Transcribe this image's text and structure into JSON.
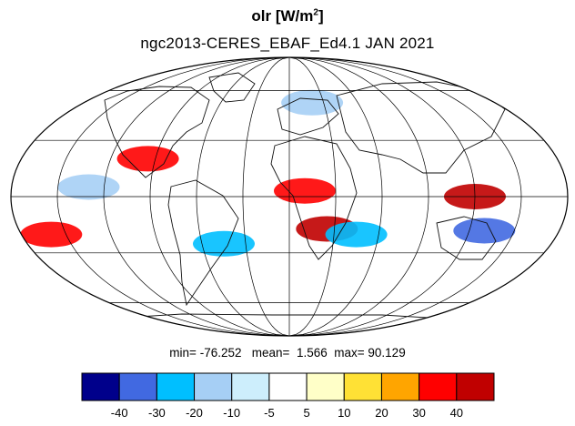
{
  "title": {
    "variable": "olr",
    "units_prefix": " [W/m",
    "units_exp": "2",
    "units_suffix": "]"
  },
  "subtitle": "ngc2013-CERES_EBAF_Ed4.1  JAN 2021",
  "stats": {
    "min_label": "min=",
    "min": "-76.252",
    "mean_label": "mean=",
    "mean": "1.566",
    "max_label": "max=",
    "max": "90.129"
  },
  "colorbar": {
    "levels": [
      "-40",
      "-30",
      "-20",
      "-10",
      "-5",
      "5",
      "10",
      "20",
      "30",
      "40"
    ],
    "colors": [
      "#00008b",
      "#4169e1",
      "#00bfff",
      "#a6cff5",
      "#cdeefc",
      "#ffffff",
      "#ffffc8",
      "#ffe135",
      "#ffa500",
      "#ff0000",
      "#c00000"
    ]
  },
  "map": {
    "projection": "mollweide",
    "background": "#ffffff",
    "coastline_color": "#000000",
    "grid": true,
    "anomalies": [
      {
        "region": "equatorial Africa / Atlantic",
        "lon": 10,
        "lat": 3,
        "value": 35
      },
      {
        "region": "Indonesia / maritime continent",
        "lon": 120,
        "lat": 0,
        "value": 40
      },
      {
        "region": "southern Africa",
        "lon": 25,
        "lat": -17,
        "value": 40
      },
      {
        "region": "Gulf of Mexico",
        "lon": -95,
        "lat": 20,
        "value": 30
      },
      {
        "region": "South Pacific",
        "lon": -160,
        "lat": -20,
        "value": 35
      },
      {
        "region": "northern Australia",
        "lon": 130,
        "lat": -18,
        "value": -40
      },
      {
        "region": "South Atlantic / Argentina",
        "lon": -45,
        "lat": -25,
        "value": -30
      },
      {
        "region": "Madagascar",
        "lon": 45,
        "lat": -20,
        "value": -30
      },
      {
        "region": "Europe",
        "lon": 20,
        "lat": 52,
        "value": -20
      },
      {
        "region": "Tropical Pacific",
        "lon": -130,
        "lat": 5,
        "value": -20
      }
    ]
  }
}
